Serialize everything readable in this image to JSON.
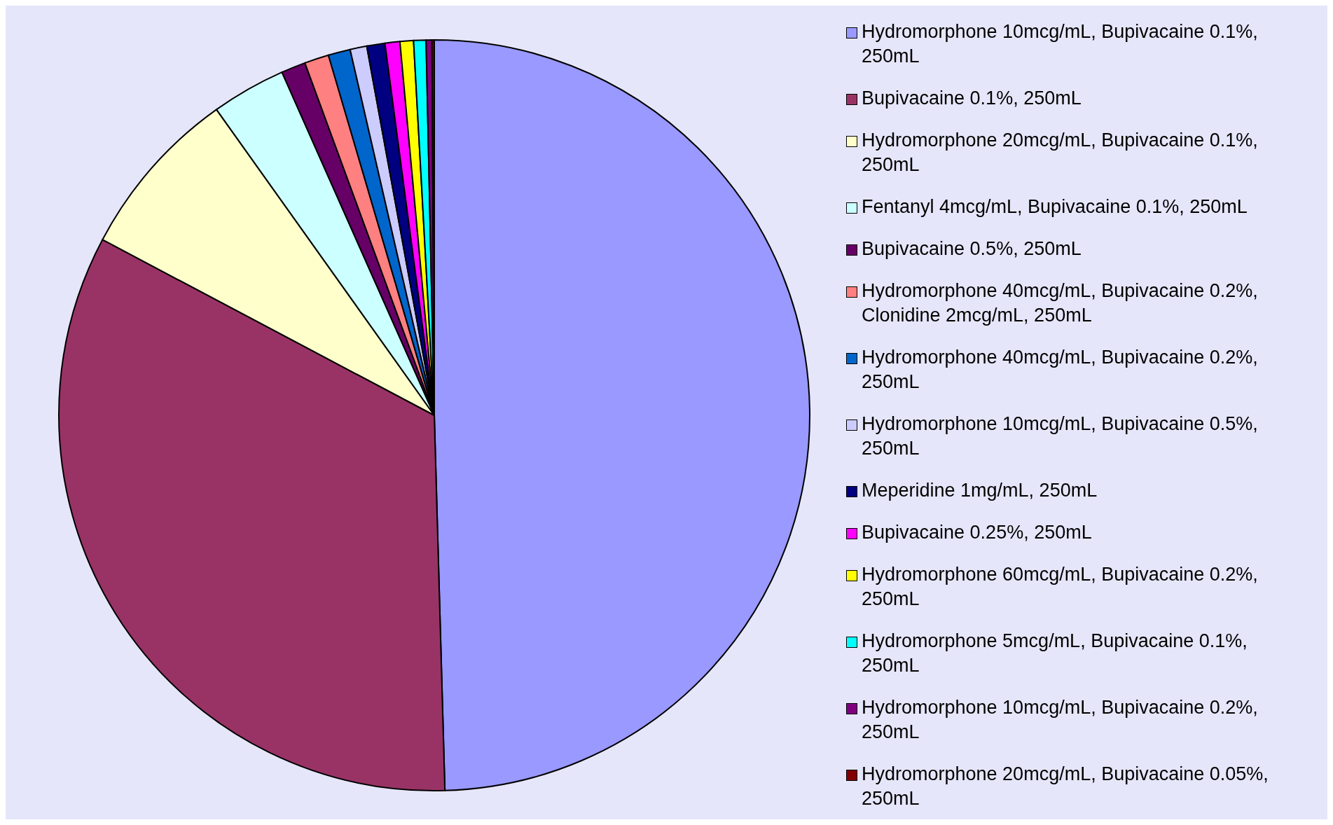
{
  "chart_data": {
    "type": "pie",
    "legend": "right",
    "categories": [
      "Hydromorphone 10mcg/mL, Bupivacaine 0.1%, 250mL",
      "Bupivacaine 0.1%, 250mL",
      "Hydromorphone 20mcg/mL, Bupivacaine 0.1%, 250mL",
      "Fentanyl 4mcg/mL, Bupivacaine 0.1%, 250mL",
      "Bupivacaine 0.5%, 250mL",
      "Hydromorphone 40mcg/mL, Bupivacaine 0.2%, Clonidine 2mcg/mL, 250mL",
      "Hydromorphone 40mcg/mL, Bupivacaine 0.2%, 250mL",
      "Hydromorphone 10mcg/mL, Bupivacaine 0.5%, 250mL",
      "Meperidine 1mg/mL, 250mL",
      "Bupivacaine 0.25%, 250mL",
      "Hydromorphone 60mcg/mL, Bupivacaine 0.2%, 250mL",
      "Hydromorphone 5mcg/mL, Bupivacaine 0.1%, 250mL",
      "Hydromorphone 10mcg/mL, Bupivacaine 0.2%, 250mL",
      "Hydromorphone 20mcg/mL, Bupivacaine 0.05%, 250mL"
    ],
    "values": [
      49.55,
      33.2,
      7.4,
      3.2,
      1.05,
      1.05,
      0.95,
      0.72,
      0.78,
      0.64,
      0.58,
      0.53,
      0.25,
      0.1
    ],
    "colors": [
      "#9999ff",
      "#993366",
      "#ffffcc",
      "#ccffff",
      "#660066",
      "#ff8080",
      "#0066cc",
      "#ccccff",
      "#000080",
      "#ff00ff",
      "#ffff00",
      "#00ffff",
      "#800080",
      "#800000"
    ]
  }
}
